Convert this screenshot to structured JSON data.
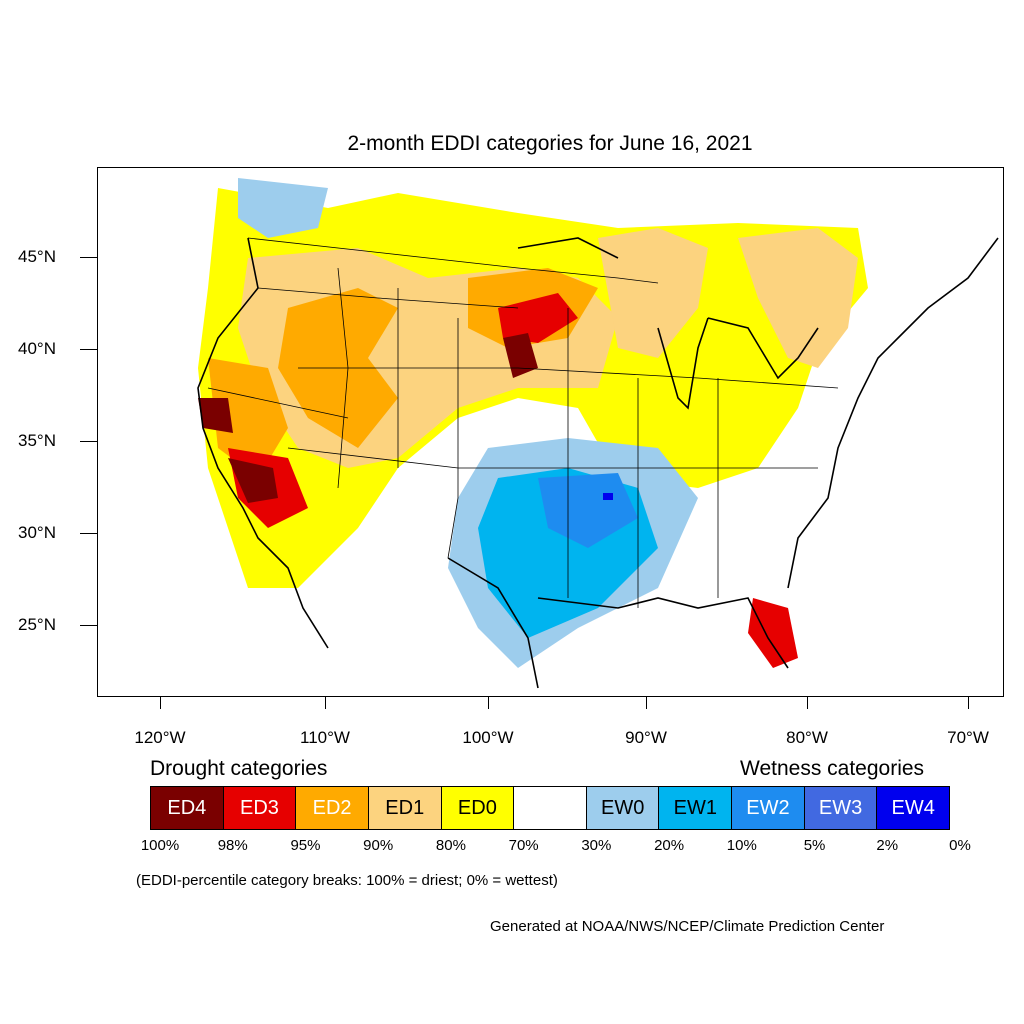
{
  "title": "2-month EDDI categories for June 16, 2021",
  "y_axis_labels": [
    "45°N",
    "40°N",
    "35°N",
    "30°N",
    "25°N"
  ],
  "x_axis_labels": [
    "120°W",
    "110°W",
    "100°W",
    "90°W",
    "80°W",
    "70°W"
  ],
  "legend": {
    "drought_heading": "Drought categories",
    "wetness_heading": "Wetness categories",
    "categories": [
      {
        "label": "ED4",
        "color": "#7a0000",
        "text_color": "#ffffff"
      },
      {
        "label": "ED3",
        "color": "#e60000",
        "text_color": "#ffffff"
      },
      {
        "label": "ED2",
        "color": "#ffaa00",
        "text_color": "#ffffff"
      },
      {
        "label": "ED1",
        "color": "#fcd37f",
        "text_color": "#000000"
      },
      {
        "label": "ED0",
        "color": "#ffff00",
        "text_color": "#000000"
      },
      {
        "label": "",
        "color": "#ffffff",
        "text_color": "#000000"
      },
      {
        "label": "EW0",
        "color": "#9dcded",
        "text_color": "#000000"
      },
      {
        "label": "EW1",
        "color": "#00b4ef",
        "text_color": "#000000"
      },
      {
        "label": "EW2",
        "color": "#1e8cf0",
        "text_color": "#ffffff"
      },
      {
        "label": "EW3",
        "color": "#4169e1",
        "text_color": "#ffffff"
      },
      {
        "label": "EW4",
        "color": "#0000ee",
        "text_color": "#ffffff"
      }
    ],
    "percentiles": [
      "100%",
      "98%",
      "95%",
      "90%",
      "80%",
      "70%",
      "30%",
      "20%",
      "10%",
      "5%",
      "2%",
      "0%"
    ]
  },
  "note": "(EDDI-percentile category breaks: 100% = driest; 0% = wettest)",
  "credit": "Generated at NOAA/NWS/NCEP/Climate Prediction Center"
}
